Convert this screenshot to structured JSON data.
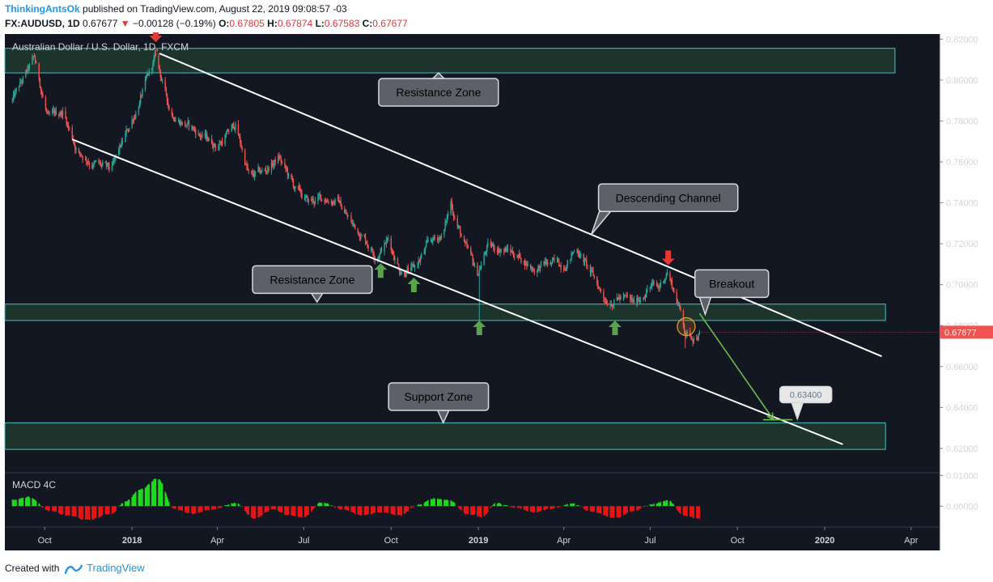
{
  "header": {
    "author": "ThinkingAntsOk",
    "published": "published on TradingView.com, August 22, 2019 09:08:57 -03",
    "symbol": "FX:AUDUSD, 1D",
    "last": "0.67677",
    "change": "−0.00128 (−0.19%)",
    "o_label": "O:",
    "o": "0.67805",
    "h_label": "H:",
    "h": "0.67874",
    "l_label": "L:",
    "l": "0.67583",
    "c_label": "C:",
    "c": "0.67677"
  },
  "footer": {
    "created_with": "Created with",
    "brand": "TradingView",
    "logo_icon": "tradingview-logo-icon"
  },
  "colors": {
    "background": "#131722",
    "zone_fill": "#1e3a2e",
    "zone_border": "#40c4c4",
    "bull": "#26a69a",
    "bear": "#ef5350",
    "annotation_arrow_up": "#5aa34a",
    "annotation_arrow_down": "#e53935",
    "macd_pos": "#1ddc1d",
    "macd_neg": "#e81414",
    "price_tag": "#ef5350"
  },
  "chart_data": [
    {
      "type": "candlestick",
      "title": "Australian Dollar / U.S. Dollar, 1D, FXCM",
      "date_range": [
        "2017-08-28",
        "2019-08-22"
      ],
      "xlim": [
        "2017-08-20",
        "2020-05-01"
      ],
      "ylim": [
        0.6085,
        0.8225
      ],
      "x_ticks": [
        {
          "date": "2017-10-01",
          "label": "Oct"
        },
        {
          "date": "2018-01-01",
          "label": "2018"
        },
        {
          "date": "2018-04-01",
          "label": "Apr"
        },
        {
          "date": "2018-07-01",
          "label": "Jul"
        },
        {
          "date": "2018-10-01",
          "label": "Oct"
        },
        {
          "date": "2019-01-01",
          "label": "2019"
        },
        {
          "date": "2019-04-01",
          "label": "Apr"
        },
        {
          "date": "2019-07-01",
          "label": "Jul"
        },
        {
          "date": "2019-10-01",
          "label": "Oct"
        },
        {
          "date": "2020-01-01",
          "label": "2020"
        },
        {
          "date": "2020-04-01",
          "label": "Apr"
        }
      ],
      "y_ticks": [
        "0.82000",
        "0.80000",
        "0.78000",
        "0.76000",
        "0.74000",
        "0.72000",
        "0.70000",
        "0.68000",
        "0.66000",
        "0.64000",
        "0.62000"
      ],
      "last_price_tag": "0.67677",
      "path_points": [
        [
          "2017-08-28",
          0.79
        ],
        [
          "2017-09-20",
          0.81
        ],
        [
          "2017-10-05",
          0.78
        ],
        [
          "2017-10-20",
          0.785
        ],
        [
          "2017-11-05",
          0.765
        ],
        [
          "2017-11-20",
          0.76
        ],
        [
          "2017-12-10",
          0.755
        ],
        [
          "2018-01-05",
          0.785
        ],
        [
          "2018-01-26",
          0.811
        ],
        [
          "2018-02-10",
          0.785
        ],
        [
          "2018-02-28",
          0.778
        ],
        [
          "2018-03-15",
          0.773
        ],
        [
          "2018-04-01",
          0.768
        ],
        [
          "2018-04-20",
          0.778
        ],
        [
          "2018-05-05",
          0.752
        ],
        [
          "2018-05-20",
          0.755
        ],
        [
          "2018-06-05",
          0.762
        ],
        [
          "2018-06-20",
          0.748
        ],
        [
          "2018-07-05",
          0.74
        ],
        [
          "2018-07-20",
          0.742
        ],
        [
          "2018-08-05",
          0.742
        ],
        [
          "2018-08-20",
          0.73
        ],
        [
          "2018-08-31",
          0.725
        ],
        [
          "2018-09-15",
          0.715
        ],
        [
          "2018-09-28",
          0.722
        ],
        [
          "2018-10-10",
          0.708
        ],
        [
          "2018-10-25",
          0.707
        ],
        [
          "2018-11-10",
          0.72
        ],
        [
          "2018-11-25",
          0.725
        ],
        [
          "2018-12-03",
          0.74
        ],
        [
          "2018-12-18",
          0.718
        ],
        [
          "2018-12-31",
          0.705
        ],
        [
          "2019-01-10",
          0.718
        ],
        [
          "2019-01-25",
          0.718
        ],
        [
          "2019-02-10",
          0.715
        ],
        [
          "2019-02-28",
          0.708
        ],
        [
          "2019-03-15",
          0.71
        ],
        [
          "2019-03-31",
          0.71
        ],
        [
          "2019-04-15",
          0.718
        ],
        [
          "2019-04-30",
          0.705
        ],
        [
          "2019-05-15",
          0.693
        ],
        [
          "2019-05-31",
          0.694
        ],
        [
          "2019-06-15",
          0.69
        ],
        [
          "2019-06-30",
          0.7
        ],
        [
          "2019-07-10",
          0.698
        ],
        [
          "2019-07-19",
          0.707
        ],
        [
          "2019-07-31",
          0.69
        ],
        [
          "2019-08-08",
          0.676
        ],
        [
          "2019-08-15",
          0.675
        ],
        [
          "2019-08-22",
          0.6768
        ]
      ],
      "spikes": [
        {
          "date": "2019-01-02",
          "low": 0.68
        },
        {
          "date": "2019-08-07",
          "low": 0.669
        }
      ],
      "zones": [
        {
          "label": "Resistance Zone",
          "top": 0.8155,
          "bottom": 0.8035,
          "from": "2017-08-20",
          "to": "2020-03-15",
          "callout": {
            "date": "2018-11-20",
            "price": 0.794,
            "anchor_date": "2018-11-20",
            "anchor_price": 0.8035
          }
        },
        {
          "label": "Resistance Zone",
          "top": 0.6905,
          "bottom": 0.6825,
          "from": "2017-08-20",
          "to": "2020-03-05",
          "callout": {
            "date": "2018-07-10",
            "price": 0.7025,
            "anchor_date": "2018-07-15",
            "anchor_price": 0.6915
          }
        },
        {
          "label": "Support Zone",
          "top": 0.6325,
          "bottom": 0.6195,
          "from": "2017-08-20",
          "to": "2020-03-05",
          "callout": {
            "date": "2018-11-20",
            "price": 0.6453,
            "anchor_date": "2018-11-25",
            "anchor_price": 0.6325
          }
        }
      ],
      "channel_lines": [
        {
          "x1": "2018-01-30",
          "y1": 0.813,
          "x2": "2020-03-01",
          "y2": 0.665
        },
        {
          "x1": "2017-10-30",
          "y1": 0.771,
          "x2": "2020-01-20",
          "y2": 0.622
        }
      ],
      "annotations": [
        {
          "text": "Descending Channel",
          "date": "2019-07-20",
          "price": 0.7425,
          "pointer_date": "2019-04-30",
          "pointer_price": 0.7245
        },
        {
          "text": "Breakout",
          "date": "2019-09-25",
          "price": 0.7005,
          "pointer_date": "2019-08-28",
          "pointer_price": 0.6855
        }
      ],
      "projection": {
        "from_date": "2019-08-22",
        "from_price": 0.686,
        "to_date": "2019-11-08",
        "to_price": 0.634,
        "target_label": "0.63400",
        "label_date": "2019-12-12",
        "label_price": 0.6463
      },
      "target_line": {
        "from_date": "2019-10-28",
        "to_date": "2019-11-28",
        "price": 0.634
      },
      "breakout_marker": {
        "date": "2019-08-08",
        "price": 0.6795
      },
      "arrows_down": [
        {
          "date": "2018-01-26",
          "price": 0.8225
        },
        {
          "date": "2019-07-20",
          "price": 0.7135
        }
      ],
      "arrows_up": [
        {
          "date": "2018-09-20",
          "price": 0.7065
        },
        {
          "date": "2018-10-25",
          "price": 0.6995
        },
        {
          "date": "2019-01-02",
          "price": 0.6785
        },
        {
          "date": "2019-05-25",
          "price": 0.6785
        }
      ]
    },
    {
      "type": "histogram",
      "title": "MACD 4C",
      "y_ticks": [
        "0.01000",
        "0.00000"
      ],
      "ylim": [
        -0.0065,
        0.0106
      ],
      "zero": 0,
      "points": [
        [
          "2017-08-28",
          0.002
        ],
        [
          "2017-09-15",
          0.003
        ],
        [
          "2017-10-05",
          -0.0015
        ],
        [
          "2017-10-25",
          -0.003
        ],
        [
          "2017-11-15",
          -0.0045
        ],
        [
          "2017-12-10",
          -0.0025
        ],
        [
          "2017-12-25",
          0.0015
        ],
        [
          "2018-01-10",
          0.0055
        ],
        [
          "2018-01-28",
          0.009
        ],
        [
          "2018-02-15",
          -0.001
        ],
        [
          "2018-03-05",
          -0.0025
        ],
        [
          "2018-03-25",
          -0.0012
        ],
        [
          "2018-04-20",
          0.001
        ],
        [
          "2018-05-10",
          -0.004
        ],
        [
          "2018-05-30",
          -0.001
        ],
        [
          "2018-06-15",
          -0.003
        ],
        [
          "2018-07-01",
          -0.0035
        ],
        [
          "2018-07-20",
          0.0012
        ],
        [
          "2018-08-10",
          -0.001
        ],
        [
          "2018-08-31",
          -0.003
        ],
        [
          "2018-09-20",
          -0.002
        ],
        [
          "2018-10-10",
          -0.003
        ],
        [
          "2018-10-31",
          0.0005
        ],
        [
          "2018-11-15",
          0.0025
        ],
        [
          "2018-12-01",
          0.002
        ],
        [
          "2018-12-20",
          -0.0025
        ],
        [
          "2019-01-05",
          -0.0035
        ],
        [
          "2019-01-20",
          0.001
        ],
        [
          "2019-02-10",
          -0.0005
        ],
        [
          "2019-03-01",
          -0.002
        ],
        [
          "2019-03-20",
          -0.0008
        ],
        [
          "2019-04-10",
          0.0008
        ],
        [
          "2019-05-01",
          -0.0018
        ],
        [
          "2019-05-25",
          -0.0038
        ],
        [
          "2019-06-15",
          -0.0015
        ],
        [
          "2019-07-01",
          0.0005
        ],
        [
          "2019-07-20",
          0.0018
        ],
        [
          "2019-08-05",
          -0.003
        ],
        [
          "2019-08-22",
          -0.004
        ]
      ]
    }
  ]
}
